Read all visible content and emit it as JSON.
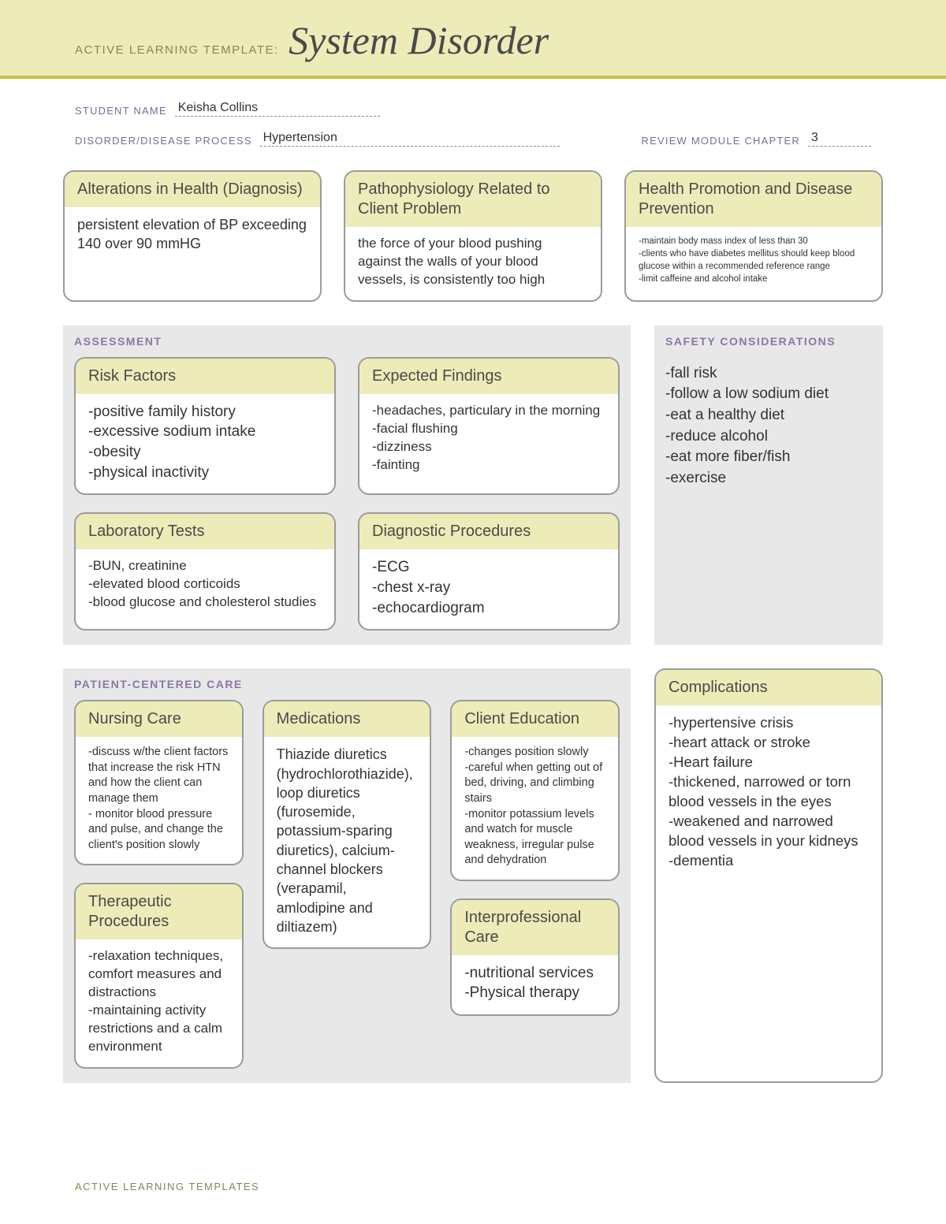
{
  "colors": {
    "header_bg": "#edebb8",
    "header_border": "#c6c042",
    "card_head_bg": "#edebb8",
    "card_border": "#9b9b9b",
    "section_bg": "#e8e8e8",
    "meta_label": "#7d6b97",
    "section_label": "#8a77a5",
    "page_bg": "#ffffff",
    "header_label": "#8a8556"
  },
  "header": {
    "label": "ACTIVE LEARNING TEMPLATE:",
    "title": "System Disorder"
  },
  "meta": {
    "student_label": "STUDENT NAME",
    "student_value": "Keisha Collins",
    "disorder_label": "DISORDER/DISEASE PROCESS",
    "disorder_value": "Hypertension",
    "chapter_label": "REVIEW MODULE CHAPTER",
    "chapter_value": "3"
  },
  "top": {
    "alterations": {
      "title": "Alterations in Health (Diagnosis)",
      "body": "persistent elevation of BP exceeding 140 over 90 mmHG"
    },
    "patho": {
      "title": "Pathophysiology Related to Client Problem",
      "body": "the force of your blood pushing against the walls of your blood vessels, is consistently too high"
    },
    "health_promo": {
      "title": "Health Promotion and Disease Prevention",
      "body": "-maintain body mass index of less than 30\n-clients who have diabetes mellitus should keep blood glucose within a recommended reference range\n-limit caffeine and alcohol intake"
    }
  },
  "assessment": {
    "label": "ASSESSMENT",
    "risk": {
      "title": "Risk Factors",
      "body": "-positive family history\n-excessive sodium intake\n-obesity\n-physical inactivity"
    },
    "expected": {
      "title": "Expected Findings",
      "body": "-headaches, particulary in the morning\n-facial flushing\n-dizziness\n-fainting"
    },
    "labs": {
      "title": "Laboratory Tests",
      "body": "-BUN, creatinine\n-elevated blood corticoids\n-blood glucose and cholesterol studies"
    },
    "diag": {
      "title": "Diagnostic Procedures",
      "body": "-ECG\n-chest x-ray\n-echocardiogram"
    }
  },
  "safety": {
    "label": "SAFETY CONSIDERATIONS",
    "body": "-fall risk\n-follow a low sodium diet\n-eat a healthy diet\n-reduce alcohol\n-eat more fiber/fish\n-exercise"
  },
  "pcc": {
    "label": "PATIENT-CENTERED CARE",
    "nursing": {
      "title": "Nursing Care",
      "body": "-discuss w/the client factors that increase the risk HTN and how the client can manage them\n- monitor blood pressure and pulse, and change the client's position slowly"
    },
    "meds": {
      "title": "Medications",
      "body": "Thiazide diuretics (hydrochlorothiazide), loop diuretics (furosemide, potassium-sparing diuretics), calcium-channel blockers (verapamil, amlodipine and diltiazem)"
    },
    "client_ed": {
      "title": "Client Education",
      "body": "-changes position slowly\n-careful when getting out of bed, driving, and climbing stairs\n-monitor potassium levels and watch for muscle weakness, irregular pulse and dehydration"
    },
    "therapeutic": {
      "title": "Therapeutic Procedures",
      "body": "-relaxation techniques, comfort measures and distractions\n-maintaining activity restrictions and a calm environment"
    },
    "interprof": {
      "title": "Interprofessional Care",
      "body": "-nutritional services\n-Physical therapy"
    }
  },
  "complications": {
    "title": "Complications",
    "body": "-hypertensive crisis\n-heart attack or stroke\n-Heart failure\n-thickened, narrowed or torn blood vessels in the eyes\n-weakened and narrowed blood vessels in your kidneys\n-dementia"
  },
  "footer": "ACTIVE LEARNING TEMPLATES"
}
